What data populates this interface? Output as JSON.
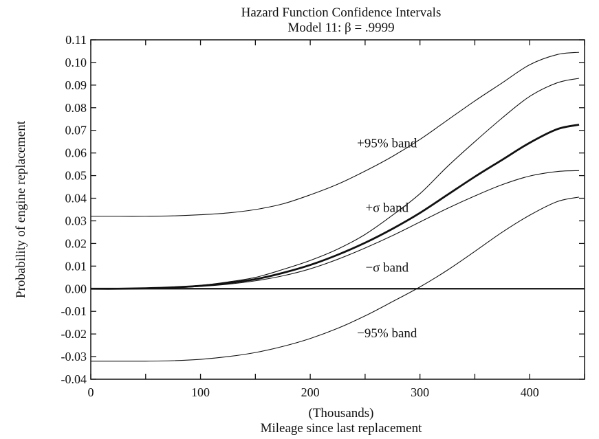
{
  "chart_data": {
    "type": "line",
    "title": "Hazard Function Confidence Intervals",
    "subtitle": "Model 11: β = .9999",
    "xlabel_line1": "(Thousands)",
    "xlabel_line2": "Mileage since last replacement",
    "ylabel": "Probability of engine replacement",
    "xlim": [
      0,
      450
    ],
    "ylim": [
      -0.04,
      0.11
    ],
    "x_ticks": [
      0,
      100,
      200,
      300,
      400
    ],
    "x_tick_labels": [
      "0",
      "100",
      "200",
      "300",
      "400"
    ],
    "y_ticks": [
      -0.04,
      -0.03,
      -0.02,
      -0.01,
      0.0,
      0.01,
      0.02,
      0.03,
      0.04,
      0.05,
      0.06,
      0.07,
      0.08,
      0.09,
      0.1,
      0.11
    ],
    "y_tick_labels": [
      "-0.04",
      "-0.03",
      "-0.02",
      "-0.01",
      "0.00",
      "0.01",
      "0.02",
      "0.03",
      "0.04",
      "0.05",
      "0.06",
      "0.07",
      "0.08",
      "0.09",
      "0.10",
      "0.11"
    ],
    "grid": false,
    "reference_line_y": 0.0,
    "x": [
      0,
      25,
      50,
      75,
      100,
      125,
      150,
      175,
      200,
      225,
      250,
      275,
      300,
      325,
      350,
      375,
      400,
      425,
      445
    ],
    "series": [
      {
        "key": "upper95",
        "values": [
          0.032,
          0.032,
          0.032,
          0.0322,
          0.0327,
          0.0335,
          0.035,
          0.0375,
          0.0415,
          0.0462,
          0.052,
          0.0585,
          0.066,
          0.0745,
          0.083,
          0.091,
          0.099,
          0.1035,
          0.1045
        ]
      },
      {
        "key": "upper_sigma",
        "values": [
          0.0,
          0.0,
          0.0003,
          0.0007,
          0.0015,
          0.003,
          0.005,
          0.0085,
          0.0125,
          0.0175,
          0.024,
          0.0325,
          0.042,
          0.054,
          0.065,
          0.0755,
          0.085,
          0.091,
          0.093
        ]
      },
      {
        "key": "estimate",
        "values": [
          0.0,
          0.0,
          0.0002,
          0.0006,
          0.0013,
          0.0025,
          0.0042,
          0.007,
          0.0105,
          0.015,
          0.0203,
          0.0265,
          0.0335,
          0.0415,
          0.0495,
          0.057,
          0.0645,
          0.0705,
          0.0725
        ]
      },
      {
        "key": "lower_sigma",
        "values": [
          0.0,
          0.0,
          0.0001,
          0.0004,
          0.001,
          0.002,
          0.0035,
          0.0057,
          0.0088,
          0.013,
          0.018,
          0.0235,
          0.0295,
          0.0355,
          0.041,
          0.046,
          0.0498,
          0.0518,
          0.0522
        ]
      },
      {
        "key": "lower95",
        "values": [
          -0.032,
          -0.032,
          -0.032,
          -0.0318,
          -0.0312,
          -0.03,
          -0.0282,
          -0.0255,
          -0.022,
          -0.0175,
          -0.012,
          -0.0057,
          0.0008,
          0.0082,
          0.0165,
          0.025,
          0.0325,
          0.0385,
          0.0405
        ]
      }
    ],
    "annotations": [
      {
        "text": "+95% band",
        "x": 270,
        "y": 0.0625
      },
      {
        "text": "+σ band",
        "x": 270,
        "y": 0.034
      },
      {
        "text": "−σ band",
        "x": 270,
        "y": 0.0075
      },
      {
        "text": "−95% band",
        "x": 270,
        "y": -0.0215
      }
    ]
  }
}
